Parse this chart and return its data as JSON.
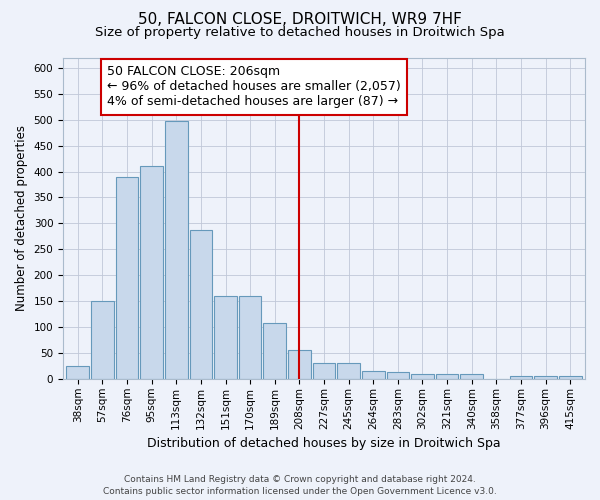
{
  "title": "50, FALCON CLOSE, DROITWICH, WR9 7HF",
  "subtitle": "Size of property relative to detached houses in Droitwich Spa",
  "xlabel": "Distribution of detached houses by size in Droitwich Spa",
  "ylabel": "Number of detached properties",
  "footer_line1": "Contains HM Land Registry data © Crown copyright and database right 2024.",
  "footer_line2": "Contains public sector information licensed under the Open Government Licence v3.0.",
  "bin_labels": [
    "38sqm",
    "57sqm",
    "76sqm",
    "95sqm",
    "113sqm",
    "132sqm",
    "151sqm",
    "170sqm",
    "189sqm",
    "208sqm",
    "227sqm",
    "245sqm",
    "264sqm",
    "283sqm",
    "302sqm",
    "321sqm",
    "340sqm",
    "358sqm",
    "377sqm",
    "396sqm",
    "415sqm"
  ],
  "bar_heights": [
    25,
    150,
    390,
    410,
    497,
    287,
    159,
    159,
    108,
    55,
    31,
    31,
    16,
    13,
    10,
    10,
    10,
    0,
    5,
    5,
    5
  ],
  "bar_color": "#c8d8eb",
  "bar_edge_color": "#6699bb",
  "property_label": "50 FALCON CLOSE: 206sqm",
  "annotation_line1": "← 96% of detached houses are smaller (2,057)",
  "annotation_line2": "4% of semi-detached houses are larger (87) →",
  "vline_color": "#cc0000",
  "vline_x_index": 9,
  "ylim": [
    0,
    620
  ],
  "yticks": [
    0,
    50,
    100,
    150,
    200,
    250,
    300,
    350,
    400,
    450,
    500,
    550,
    600
  ],
  "grid_color": "#c0c8d8",
  "background_color": "#eef2fa",
  "title_fontsize": 11,
  "subtitle_fontsize": 9.5,
  "annotation_fontsize": 9,
  "ylabel_fontsize": 8.5,
  "xlabel_fontsize": 9,
  "tick_fontsize": 7.5,
  "footer_fontsize": 6.5
}
